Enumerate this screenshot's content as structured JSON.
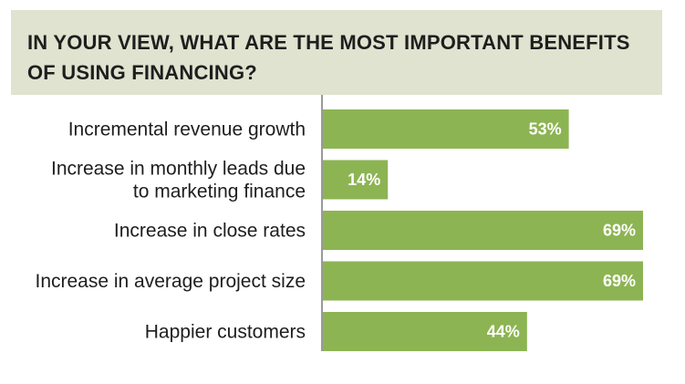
{
  "chart_data": {
    "type": "bar",
    "orientation": "horizontal",
    "title": "IN YOUR VIEW, WHAT ARE THE MOST IMPORTANT BENEFITS OF USING FINANCING?",
    "categories": [
      [
        "Incremental revenue growth"
      ],
      [
        "Increase in monthly leads due",
        "to marketing finance"
      ],
      [
        "Increase in close rates"
      ],
      [
        "Increase in average project size"
      ],
      [
        "Happier customers"
      ]
    ],
    "values": [
      53,
      14,
      69,
      69,
      44
    ],
    "value_labels": [
      "53%",
      "14%",
      "69%",
      "69%",
      "44%"
    ],
    "unit": "%",
    "xlim": [
      0,
      69
    ],
    "grid": false,
    "bar_color": "#8db453",
    "title_background": "#dfe3cf",
    "axis_color": "#9a9a9a"
  }
}
